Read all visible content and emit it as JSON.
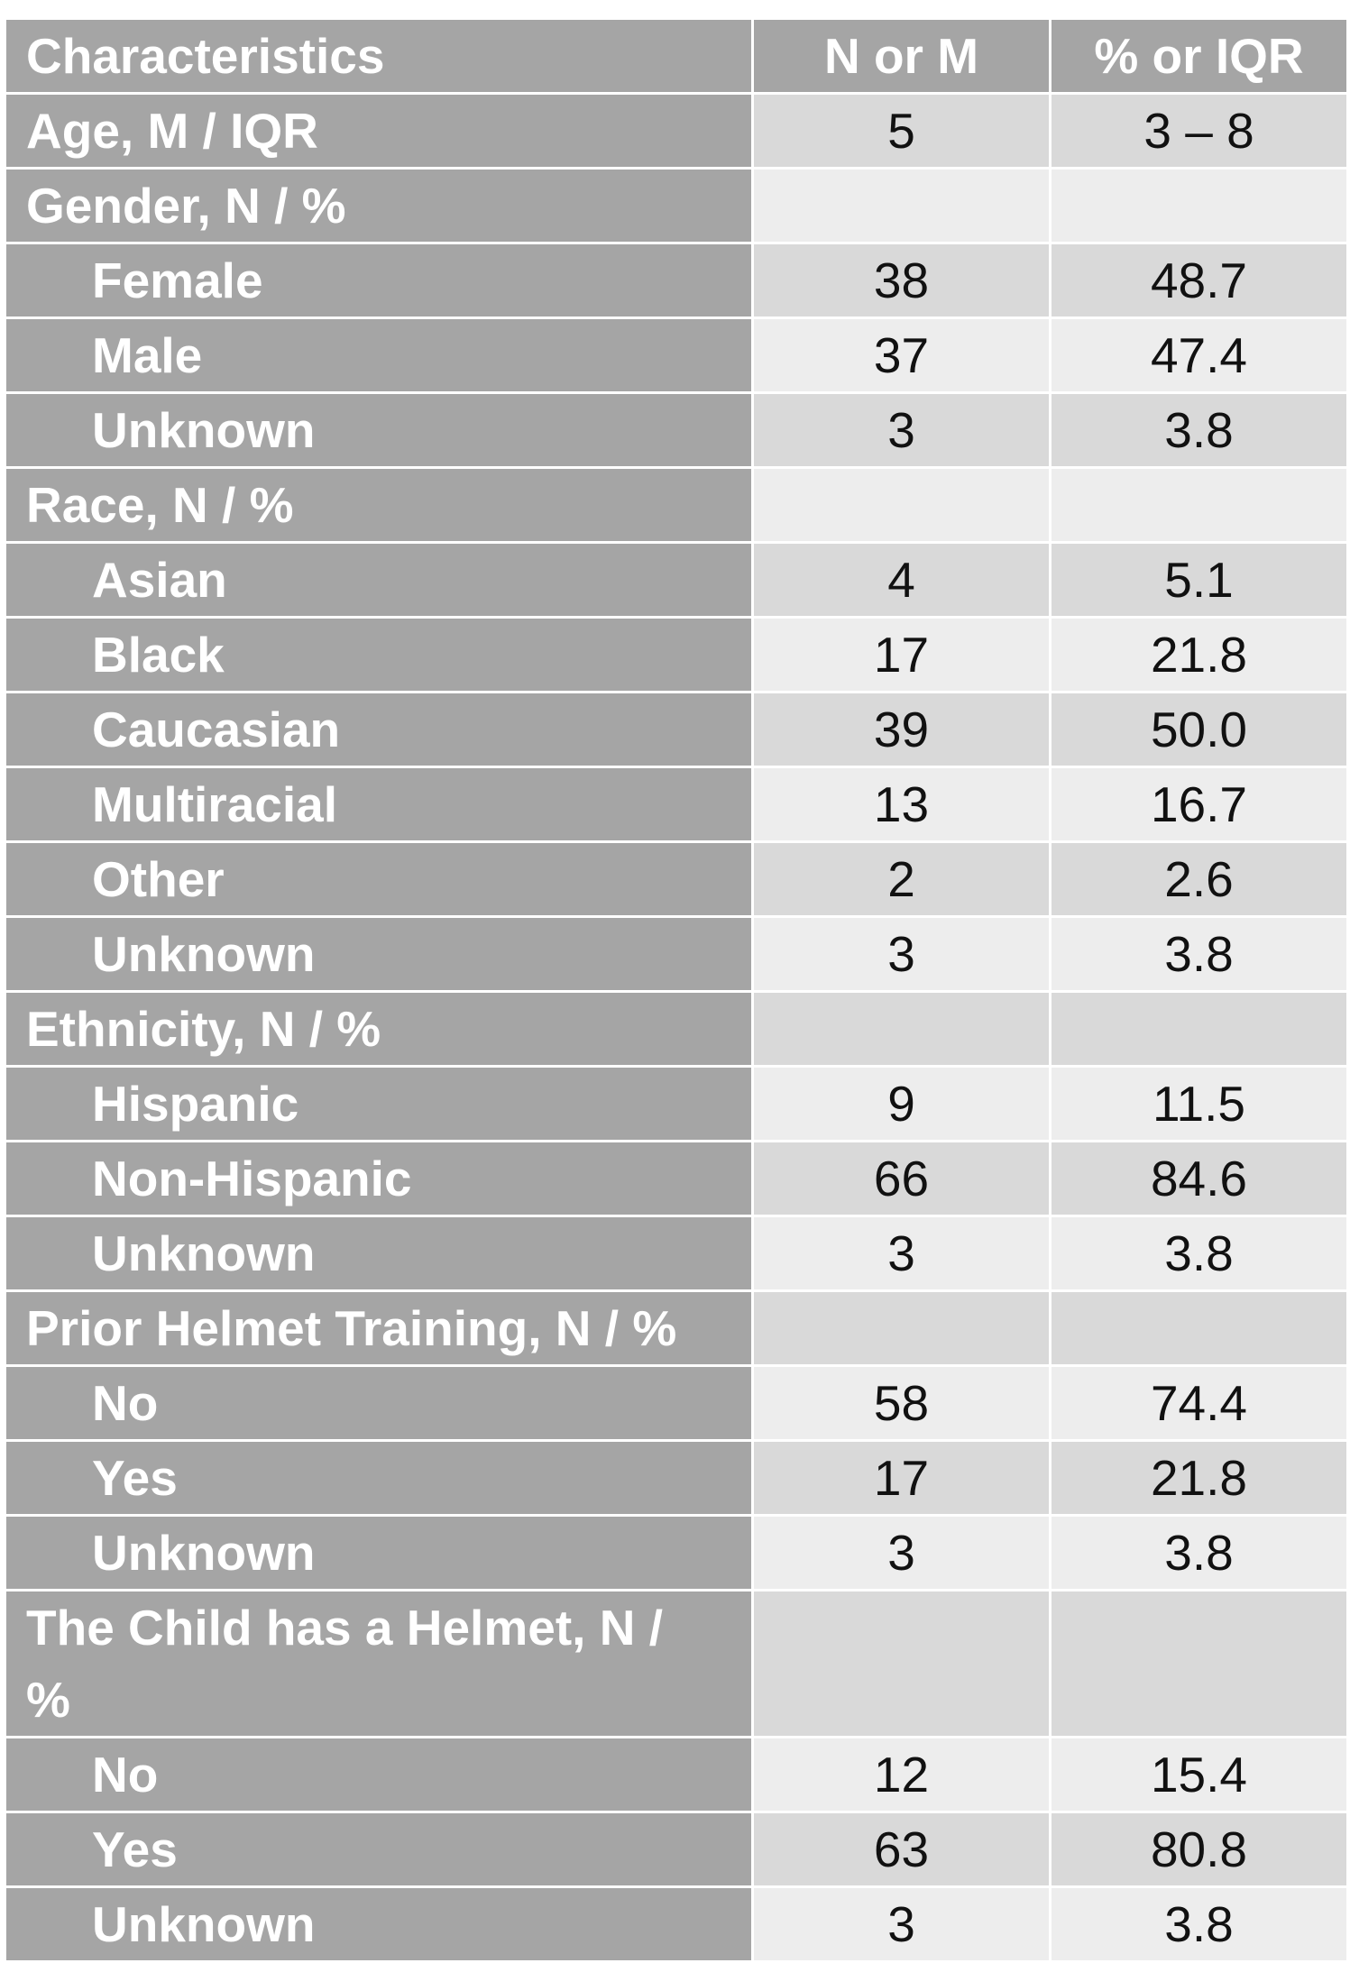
{
  "table": {
    "headers": [
      "Characteristics",
      "N or M",
      "% or IQR"
    ],
    "rows": [
      {
        "label": "Age, M / IQR",
        "n": "5",
        "pct": "3 – 8",
        "indent": false,
        "shade": "a"
      },
      {
        "label": "Gender, N / %",
        "n": "",
        "pct": "",
        "indent": false,
        "shade": "b"
      },
      {
        "label": "Female",
        "n": "38",
        "pct": "48.7",
        "indent": true,
        "shade": "a"
      },
      {
        "label": "Male",
        "n": "37",
        "pct": "47.4",
        "indent": true,
        "shade": "b"
      },
      {
        "label": "Unknown",
        "n": "3",
        "pct": "3.8",
        "indent": true,
        "shade": "a"
      },
      {
        "label": "Race, N / %",
        "n": "",
        "pct": "",
        "indent": false,
        "shade": "b"
      },
      {
        "label": "Asian",
        "n": "4",
        "pct": "5.1",
        "indent": true,
        "shade": "a"
      },
      {
        "label": "Black",
        "n": "17",
        "pct": "21.8",
        "indent": true,
        "shade": "b"
      },
      {
        "label": "Caucasian",
        "n": "39",
        "pct": "50.0",
        "indent": true,
        "shade": "a"
      },
      {
        "label": "Multiracial",
        "n": "13",
        "pct": "16.7",
        "indent": true,
        "shade": "b"
      },
      {
        "label": "Other",
        "n": "2",
        "pct": "2.6",
        "indent": true,
        "shade": "a"
      },
      {
        "label": "Unknown",
        "n": "3",
        "pct": "3.8",
        "indent": true,
        "shade": "b"
      },
      {
        "label": "Ethnicity, N / %",
        "n": "",
        "pct": "",
        "indent": false,
        "shade": "a"
      },
      {
        "label": "Hispanic",
        "n": "9",
        "pct": "11.5",
        "indent": true,
        "shade": "b"
      },
      {
        "label": "Non-Hispanic",
        "n": "66",
        "pct": "84.6",
        "indent": true,
        "shade": "a"
      },
      {
        "label": "Unknown",
        "n": "3",
        "pct": "3.8",
        "indent": true,
        "shade": "b"
      },
      {
        "label": "Prior Helmet Training, N / %",
        "n": "",
        "pct": "",
        "indent": false,
        "shade": "a"
      },
      {
        "label": "No",
        "n": "58",
        "pct": "74.4",
        "indent": true,
        "shade": "b"
      },
      {
        "label": "Yes",
        "n": "17",
        "pct": "21.8",
        "indent": true,
        "shade": "a"
      },
      {
        "label": "Unknown",
        "n": "3",
        "pct": "3.8",
        "indent": true,
        "shade": "b"
      },
      {
        "label": "The Child has a Helmet, N / %",
        "n": "",
        "pct": "",
        "indent": false,
        "shade": "a",
        "tall": true
      },
      {
        "label": "No",
        "n": "12",
        "pct": "15.4",
        "indent": true,
        "shade": "b"
      },
      {
        "label": "Yes",
        "n": "63",
        "pct": "80.8",
        "indent": true,
        "shade": "a"
      },
      {
        "label": "Unknown",
        "n": "3",
        "pct": "3.8",
        "indent": true,
        "shade": "b"
      }
    ]
  },
  "colors": {
    "label_bg": "#a5a5a5",
    "row_shade_a": "#d9d9d9",
    "row_shade_b": "#ededed",
    "grid": "#ffffff"
  }
}
